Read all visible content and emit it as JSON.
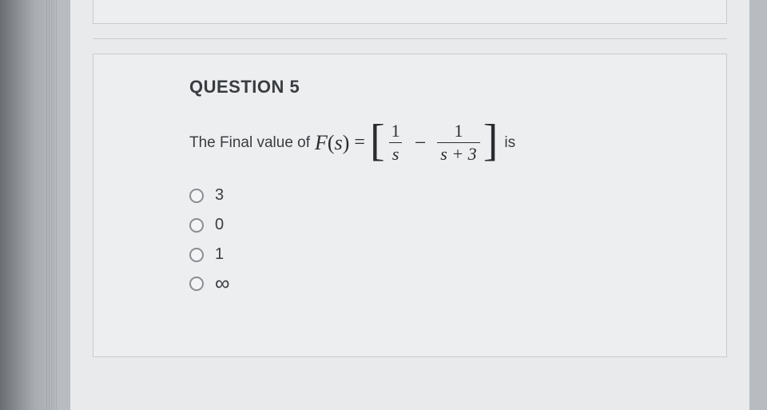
{
  "question": {
    "title": "QUESTION 5",
    "prompt_lead": "The Final value of",
    "formula": {
      "func": "F",
      "var": "s",
      "frac1_num": "1",
      "frac1_den": "s",
      "frac2_num": "1",
      "frac2_den": "s + 3"
    },
    "prompt_tail": "is",
    "options": [
      {
        "label": "3"
      },
      {
        "label": "0"
      },
      {
        "label": "1"
      },
      {
        "label": "∞"
      }
    ]
  },
  "colors": {
    "background": "#b8bcc0",
    "page_bg": "#e8eaec",
    "box_bg": "#eceef0",
    "border": "#c8cbce",
    "text": "#3a3d40",
    "formula_text": "#2a2d30",
    "radio_border": "#8a8e92"
  }
}
